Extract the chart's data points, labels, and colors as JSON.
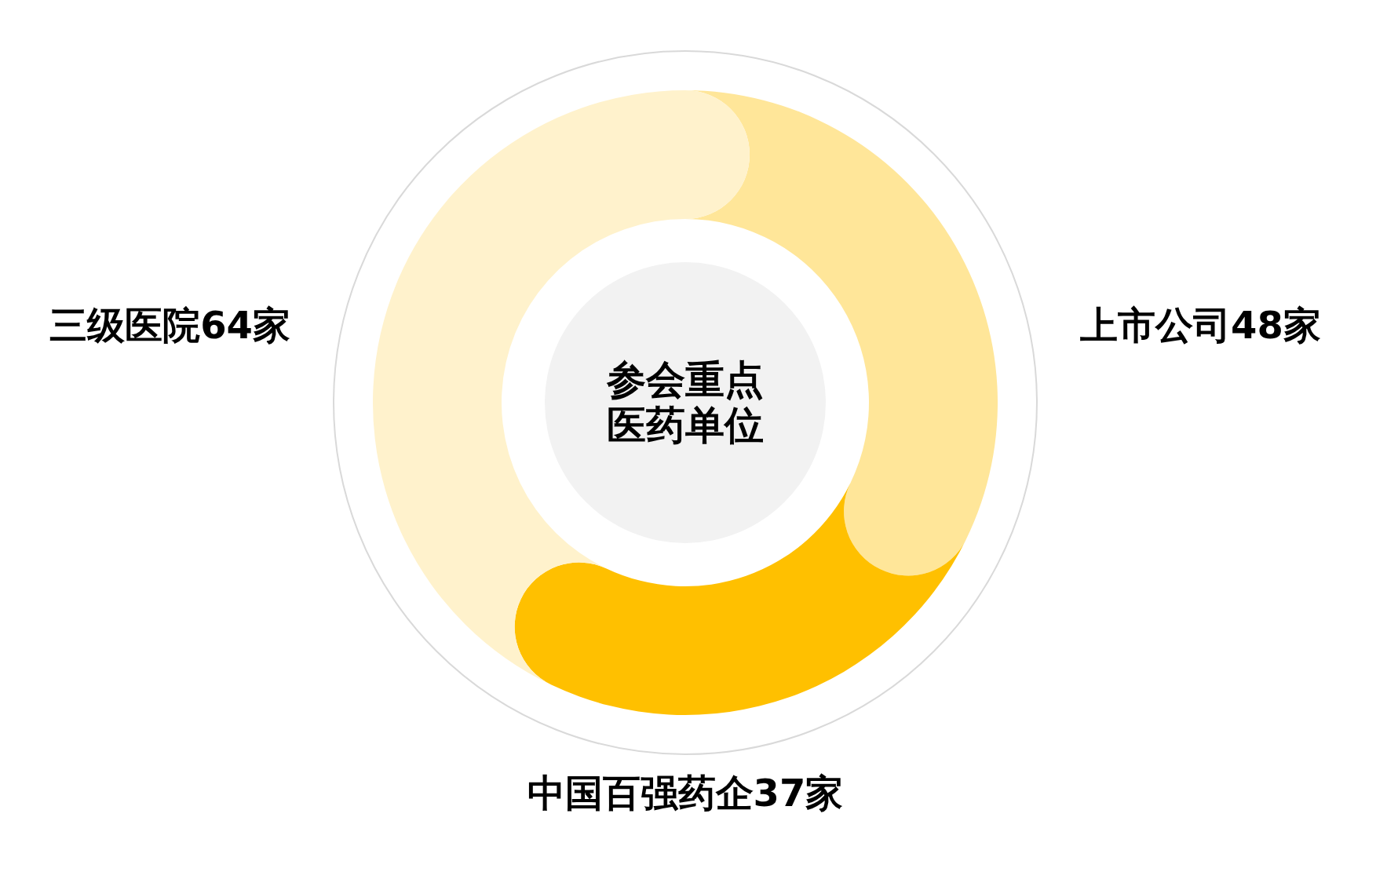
{
  "chart_data": {
    "type": "donut",
    "title": "参会重点医药单位",
    "categories": [
      "上市公司",
      "中国百强药企",
      "三级医院"
    ],
    "values": [
      48,
      37,
      64
    ],
    "colors": [
      "#ffe699",
      "#ffc000",
      "#fff2cc"
    ],
    "value_labels": [
      "48家",
      "37家",
      "64家"
    ]
  }
}
